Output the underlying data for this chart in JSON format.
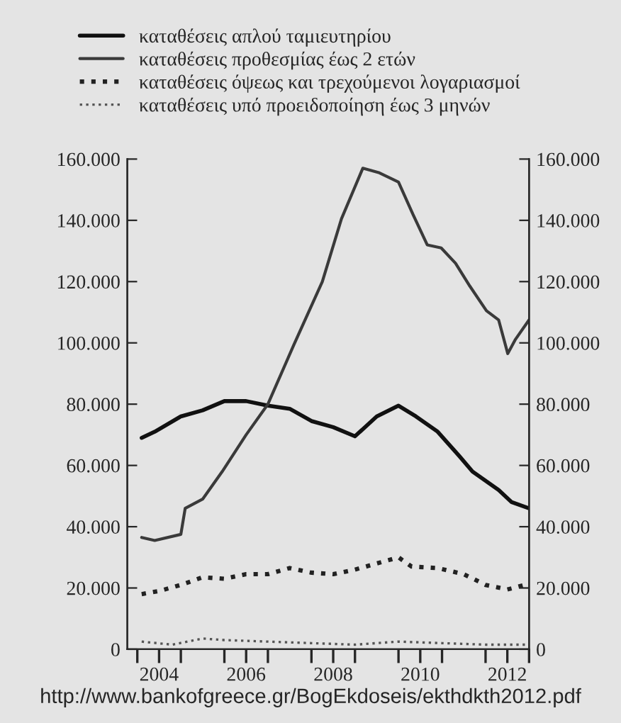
{
  "chart_data": {
    "type": "line",
    "series": [
      {
        "name": "καταθέσεις απλού ταμιευτηρίου",
        "color": "#111111",
        "line_style": "solid",
        "x": [
          2004.1,
          2004.4,
          2005.0,
          2005.5,
          2006.0,
          2006.5,
          2007.0,
          2007.5,
          2008.0,
          2008.5,
          2009.0,
          2009.5,
          2010.0,
          2010.4,
          2010.9,
          2011.4,
          2011.7,
          2012.3,
          2012.6,
          2013.0
        ],
        "values": [
          69000,
          71000,
          76000,
          78000,
          81000,
          81000,
          79500,
          78500,
          74500,
          72500,
          69500,
          76000,
          79500,
          76000,
          71000,
          63000,
          58000,
          52000,
          48000,
          46000
        ]
      },
      {
        "name": "καταθέσεις προθεσμίας έως 2 ετών",
        "color": "#3a3a3a",
        "line_style": "solid",
        "x": [
          2004.1,
          2004.4,
          2005.0,
          2005.1,
          2005.5,
          2005.95,
          2006.5,
          2007.0,
          2007.6,
          2008.25,
          2008.69,
          2009.18,
          2009.56,
          2010.0,
          2010.33,
          2010.66,
          2010.98,
          2011.31,
          2011.64,
          2012.02,
          2012.3,
          2012.51,
          2012.68,
          2013.0
        ],
        "values": [
          36500,
          35500,
          37500,
          46000,
          49000,
          58000,
          70000,
          80000,
          99500,
          120000,
          140500,
          157000,
          155500,
          152500,
          142000,
          132000,
          131000,
          126000,
          118500,
          110500,
          107500,
          96500,
          101000,
          107500
        ]
      },
      {
        "name": "καταθέσεις όψεως και τρεχούμενοι λογαριασμοί",
        "color": "#222222",
        "line_style": "dotted",
        "x": [
          2004.1,
          2004.5,
          2005.0,
          2005.5,
          2006.0,
          2006.5,
          2007.0,
          2007.5,
          2008.0,
          2008.5,
          2009.0,
          2009.5,
          2010.0,
          2010.3,
          2010.9,
          2011.5,
          2012.0,
          2012.5,
          2012.9
        ],
        "values": [
          18000,
          19000,
          21000,
          23500,
          23000,
          24500,
          24500,
          26500,
          25000,
          24500,
          26000,
          28000,
          30000,
          27000,
          26500,
          24500,
          21000,
          19500,
          21000
        ]
      },
      {
        "name": "καταθέσεις υπό προειδοποίηση έως 3 μηνών",
        "color": "#555555",
        "line_style": "dotted",
        "x": [
          2004.1,
          2004.8,
          2005.5,
          2006.0,
          2007.0,
          2008.0,
          2009.0,
          2010.0,
          2011.0,
          2012.0,
          2013.0
        ],
        "values": [
          2500,
          1500,
          3500,
          3000,
          2500,
          2000,
          1500,
          2500,
          2000,
          1500,
          1500
        ]
      }
    ],
    "xlim": [
      2003.77,
      2013.0
    ],
    "xticks": [
      {
        "value": 2004,
        "label": null
      },
      {
        "value": 2005,
        "label": null
      },
      {
        "value": 2006,
        "label": null
      },
      {
        "value": 2007,
        "label": null
      },
      {
        "value": 2008,
        "label": null
      },
      {
        "value": 2009,
        "label": null
      },
      {
        "value": 2010,
        "label": null
      },
      {
        "value": 2011,
        "label": null
      },
      {
        "value": 2012,
        "label": null
      },
      {
        "value": 2013,
        "label": null
      },
      {
        "value": 2004.5,
        "label": "2004"
      },
      {
        "value": 2006.5,
        "label": "2006"
      },
      {
        "value": 2008.5,
        "label": "2008"
      },
      {
        "value": 2010.5,
        "label": "2010"
      },
      {
        "value": 2012.5,
        "label": "2012"
      }
    ],
    "ylim": [
      0,
      160000
    ],
    "yticks": [
      0,
      {
        "value": 20000,
        "label": "20.000"
      },
      {
        "value": 40000,
        "label": "40.000"
      },
      {
        "value": 60000,
        "label": "60.000"
      },
      {
        "value": 80000,
        "label": "80.000"
      },
      {
        "value": 100000,
        "label": "100.000"
      },
      {
        "value": 120000,
        "label": "120.000"
      },
      {
        "value": 140000,
        "label": "140.000"
      },
      {
        "value": 160000,
        "label": "160.000"
      }
    ],
    "y2lim": [
      0,
      160000
    ],
    "y2ticks": [
      0,
      {
        "value": 20000,
        "label": "20.000"
      },
      {
        "value": 40000,
        "label": "40.000"
      },
      {
        "value": 60000,
        "label": "60.000"
      },
      {
        "value": 80000,
        "label": "80.000"
      },
      {
        "value": 100000,
        "label": "100.000"
      },
      {
        "value": 120000,
        "label": "120.000"
      },
      {
        "value": 140000,
        "label": "140.000"
      },
      {
        "value": 160000,
        "label": "160.000"
      }
    ],
    "legend": "top",
    "grid": false,
    "annotations": [
      "http://www.bankofgreece.gr/BogEkdoseis/ekthdkth2012.pdf"
    ]
  }
}
